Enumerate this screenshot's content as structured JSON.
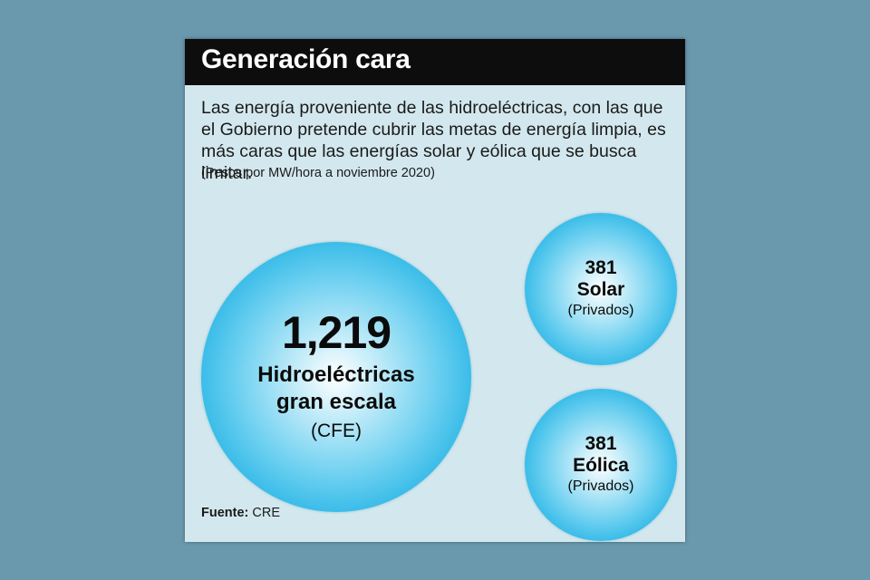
{
  "title": "Generación cara",
  "description": "Las energía proveniente de las hidroeléctricas, con las que el Gobierno pretende cubrir las metas de energía limpia, es más caras que las energías solar y eólica que se busca limitar.",
  "units_note": "(Pesos por MW/hora a noviembre 2020)",
  "colors": {
    "background": "#6a98ad",
    "card": "#d3e8ee",
    "title_bar": "#0d0d0d",
    "bubble": "#27b5e6"
  },
  "chart_data": {
    "type": "bubble",
    "unit": "Pesos por MW/hora a noviembre 2020",
    "bubbles": [
      {
        "value": 1219,
        "value_label": "1,219",
        "name": "Hidroeléctricas gran escala",
        "name_lines": [
          "Hidroeléctricas",
          "gran escala"
        ],
        "owner": "(CFE)"
      },
      {
        "value": 381,
        "value_label": "381",
        "name": "Solar",
        "name_lines": [
          "Solar"
        ],
        "owner": "(Privados)"
      },
      {
        "value": 381,
        "value_label": "381",
        "name": "Eólica",
        "name_lines": [
          "Eólica"
        ],
        "owner": "(Privados)"
      }
    ]
  },
  "source": {
    "label": "Fuente:",
    "value": "CRE"
  }
}
